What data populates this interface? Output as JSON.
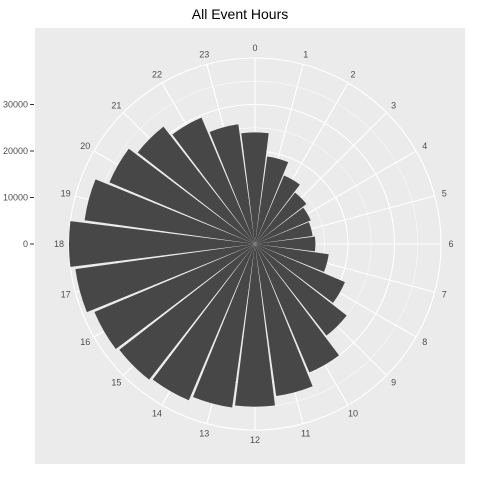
{
  "chart_data": {
    "type": "bar",
    "coord": "polar",
    "title": "All Event Hours",
    "xlabel": "",
    "ylabel": "",
    "categories": [
      "0",
      "1",
      "2",
      "3",
      "4",
      "5",
      "6",
      "7",
      "8",
      "9",
      "10",
      "11",
      "12",
      "13",
      "14",
      "15",
      "16",
      "17",
      "18",
      "19",
      "20",
      "21",
      "22",
      "23"
    ],
    "values": [
      24000,
      19000,
      16000,
      14000,
      13000,
      12500,
      13000,
      16000,
      21000,
      25000,
      30000,
      33000,
      35000,
      35500,
      36500,
      37000,
      37500,
      39000,
      40000,
      37000,
      34000,
      32000,
      29500,
      26000
    ],
    "radial_ticks": [
      "0",
      "10000",
      "20000",
      "30000"
    ],
    "radial_tick_values": [
      0,
      10000,
      20000,
      30000
    ],
    "radial_range": [
      0,
      40000
    ],
    "grid": true,
    "colors": {
      "panel": "#ebebeb",
      "bar": "#474747",
      "grid": "#ffffff",
      "text": "#4d4d4d"
    }
  }
}
